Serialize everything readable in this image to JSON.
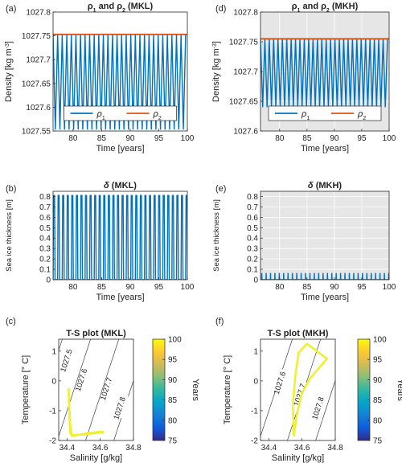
{
  "chart_data": [
    {
      "panel": "(a)",
      "type": "line",
      "title": "ρ1 and ρ2 (MKL)",
      "xlabel": "Time [years]",
      "ylabel": "Density [kg m-3]",
      "xlim": [
        76.5,
        100
      ],
      "ylim": [
        1027.55,
        1027.8
      ],
      "xticks": [
        80,
        85,
        90,
        95,
        100
      ],
      "yticks": [
        1027.55,
        1027.6,
        1027.65,
        1027.7,
        1027.75,
        1027.8
      ],
      "yticklabels": [
        "1027.55",
        "1027.6",
        "1027.65",
        "1027.7",
        "1027.75",
        "1027.8"
      ],
      "background": "#ffffff",
      "legend": {
        "placement": "bottom",
        "entries": [
          "ρ1",
          "ρ2"
        ]
      },
      "series": [
        {
          "name": "ρ1",
          "color": "#0072BD",
          "kind": "oscillation",
          "min": 1027.553,
          "max": 1027.752,
          "period": 0.8,
          "start": 76.5,
          "end": 100
        },
        {
          "name": "ρ2",
          "color": "#D95319",
          "kind": "constant",
          "value": 1027.753
        }
      ]
    },
    {
      "panel": "(d)",
      "type": "line",
      "title": "ρ1 and ρ2 (MKH)",
      "xlabel": "Time [years]",
      "ylabel": "Density [kg m-3]",
      "xlim": [
        76.5,
        100
      ],
      "ylim": [
        1027.6,
        1027.8
      ],
      "xticks": [
        80,
        85,
        90,
        95,
        100
      ],
      "yticks": [
        1027.6,
        1027.65,
        1027.7,
        1027.75,
        1027.8
      ],
      "yticklabels": [
        "1027.6",
        "1027.65",
        "1027.7",
        "1027.75",
        "1027.8"
      ],
      "background": "#e6e6e6",
      "legend": {
        "placement": "bottom",
        "entries": [
          "ρ1",
          "ρ2"
        ]
      },
      "series": [
        {
          "name": "ρ1",
          "color": "#0072BD",
          "kind": "oscillation",
          "min": 1027.64,
          "max": 1027.755,
          "period": 0.8,
          "start": 76.5,
          "end": 100
        },
        {
          "name": "ρ2",
          "color": "#D95319",
          "kind": "constant",
          "value": 1027.755
        }
      ]
    },
    {
      "panel": "(b)",
      "type": "line",
      "title": "δ (MKL)",
      "xlabel": "Time [years]",
      "ylabel": "Sea ice thickness [m]",
      "xlim": [
        76.5,
        100
      ],
      "ylim": [
        0,
        0.85
      ],
      "xticks": [
        80,
        85,
        90,
        95,
        100
      ],
      "yticks": [
        0,
        0.1,
        0.2,
        0.3,
        0.4,
        0.5,
        0.6,
        0.7,
        0.8
      ],
      "yticklabels": [
        "0",
        "0.1",
        "0.2",
        "0.3",
        "0.4",
        "0.5",
        "0.6",
        "0.7",
        "0.8"
      ],
      "background": "#ffffff",
      "series": [
        {
          "name": "",
          "color": "#0072BD",
          "kind": "pulses",
          "min": 0,
          "max": 0.81,
          "period": 0.8,
          "start": 76.5,
          "end": 100
        }
      ]
    },
    {
      "panel": "(e)",
      "type": "line",
      "title": "δ (MKH)",
      "xlabel": "Time [years]",
      "ylabel": "Sea ice thickness [m]",
      "xlim": [
        76.5,
        100
      ],
      "ylim": [
        0,
        0.85
      ],
      "xticks": [
        80,
        85,
        90,
        95,
        100
      ],
      "yticks": [
        0,
        0.1,
        0.2,
        0.3,
        0.4,
        0.5,
        0.6,
        0.7,
        0.8
      ],
      "yticklabels": [
        "0",
        "0.1",
        "0.2",
        "0.3",
        "0.4",
        "0.5",
        "0.6",
        "0.7",
        "0.8"
      ],
      "background": "#e6e6e6",
      "series": [
        {
          "name": "",
          "color": "#0072BD",
          "kind": "spikes",
          "min": 0,
          "max": 0.065,
          "period": 0.8,
          "start": 76.5,
          "end": 100
        }
      ]
    },
    {
      "panel": "(c)",
      "type": "scatter",
      "title": "T-S plot (MKL)",
      "xlabel": "Salinity [g/kg]",
      "ylabel": "Temperature [° C]",
      "xlim": [
        34.35,
        34.8
      ],
      "ylim": [
        -2,
        1.4
      ],
      "xticks": [
        34.4,
        34.6,
        34.8
      ],
      "yticks": [
        -2,
        -1,
        0,
        1
      ],
      "background": "#ffffff",
      "isopycnals": [
        "1027.5",
        "1027.6",
        "1027.7",
        "1027.8"
      ],
      "trajectory": [
        [
          34.41,
          -0.25
        ],
        [
          34.415,
          -1.3
        ],
        [
          34.42,
          -1.75
        ],
        [
          34.43,
          -1.85
        ],
        [
          34.5,
          -1.78
        ],
        [
          34.6,
          -1.7
        ],
        [
          34.62,
          -1.72
        ],
        [
          34.5,
          -1.8
        ],
        [
          34.43,
          -1.82
        ],
        [
          34.42,
          -1.5
        ],
        [
          34.41,
          -0.4
        ]
      ],
      "colorbar": {
        "label": "Years",
        "min": 75,
        "max": 100,
        "ticks": [
          75,
          80,
          85,
          90,
          95,
          100
        ]
      }
    },
    {
      "panel": "(f)",
      "type": "scatter",
      "title": "T-S plot (MKH)",
      "xlabel": "Salinity [g/kg]",
      "ylabel": "Temperature [° C]",
      "xlim": [
        34.35,
        34.8
      ],
      "ylim": [
        -2,
        1.4
      ],
      "xticks": [
        34.4,
        34.6,
        34.8
      ],
      "yticks": [
        -2,
        -1,
        0,
        1
      ],
      "background": "#ffffff",
      "isopycnals": [
        "1027.6",
        "1027.7",
        "1027.8"
      ],
      "trajectory": [
        [
          34.55,
          -1.85
        ],
        [
          34.545,
          -0.8
        ],
        [
          34.56,
          0.2
        ],
        [
          34.58,
          0.95
        ],
        [
          34.63,
          1.25
        ],
        [
          34.7,
          0.95
        ],
        [
          34.75,
          0.75
        ],
        [
          34.72,
          0.55
        ],
        [
          34.65,
          0.1
        ],
        [
          34.6,
          -0.4
        ],
        [
          34.57,
          -1.1
        ],
        [
          34.55,
          -1.85
        ]
      ],
      "colorbar": {
        "label": "Years",
        "min": 75,
        "max": 100,
        "ticks": [
          75,
          80,
          85,
          90,
          95,
          100
        ]
      }
    }
  ],
  "colors": {
    "rho1": "#0072BD",
    "rho2": "#D95319",
    "trajectory": "#f0f032",
    "shaded_bg": "#e6e6e6",
    "grid": "#d0d0d0"
  }
}
